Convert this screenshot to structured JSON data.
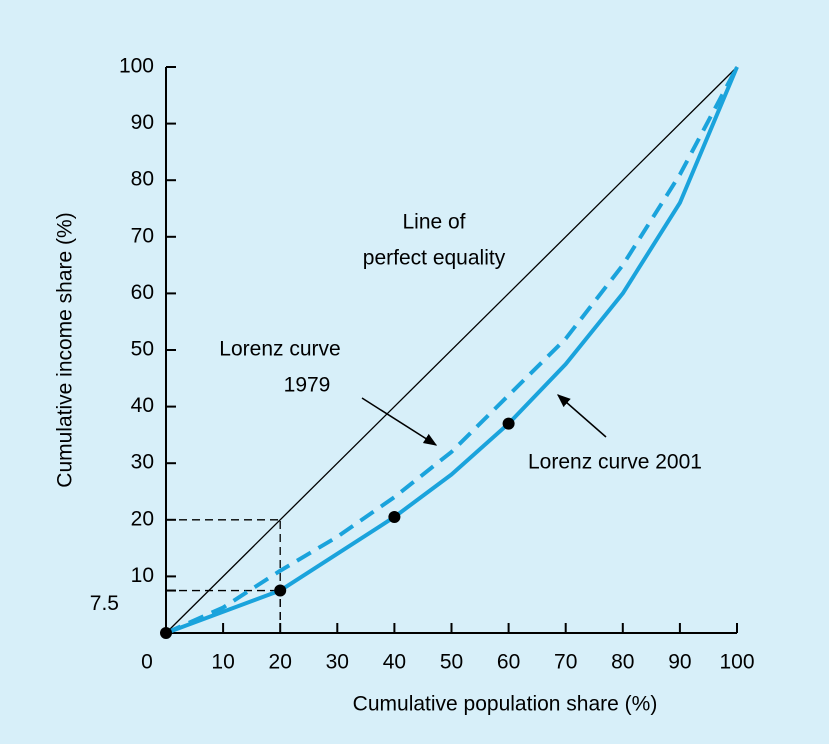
{
  "chart_data": {
    "type": "line",
    "x_label": "Cumulative population share (%)",
    "y_label": "Cumulative income share (%)",
    "xlim": [
      0,
      100
    ],
    "ylim": [
      0,
      100
    ],
    "xticks": [
      0,
      10,
      20,
      30,
      40,
      50,
      60,
      70,
      80,
      90,
      100
    ],
    "yticks": [
      7.5,
      10,
      20,
      30,
      40,
      50,
      60,
      70,
      80,
      90,
      100
    ],
    "series": [
      {
        "color": "#000000",
        "style": "thin",
        "x": [
          0,
          100
        ],
        "values": [
          0,
          100
        ]
      },
      {
        "color": "#1aa3dc",
        "style": "dashed",
        "x": [
          0,
          10,
          20,
          30,
          40,
          50,
          60,
          70,
          80,
          90,
          100
        ],
        "values": [
          0,
          4.5,
          11,
          17,
          24,
          32,
          42,
          52,
          65,
          81,
          100
        ]
      },
      {
        "color": "#1aa3dc",
        "style": "solid",
        "x": [
          0,
          20,
          40,
          50,
          60,
          70,
          80,
          90,
          100
        ],
        "values": [
          0,
          7.5,
          20.5,
          28,
          37,
          47.5,
          60,
          76,
          100
        ]
      }
    ],
    "marked_points": {
      "x": [
        0,
        20,
        40,
        60
      ],
      "y": [
        0,
        7.5,
        20.5,
        37
      ]
    },
    "guides": [
      {
        "x": 20,
        "y": 20
      },
      {
        "x": 20,
        "y": 7.5
      }
    ],
    "annotations": [
      {
        "lines": [
          "Line of",
          "perfect equality"
        ]
      },
      {
        "lines": [
          "Lorenz curve",
          "1979"
        ]
      },
      {
        "lines": [
          "Lorenz curve 2001"
        ]
      }
    ]
  }
}
